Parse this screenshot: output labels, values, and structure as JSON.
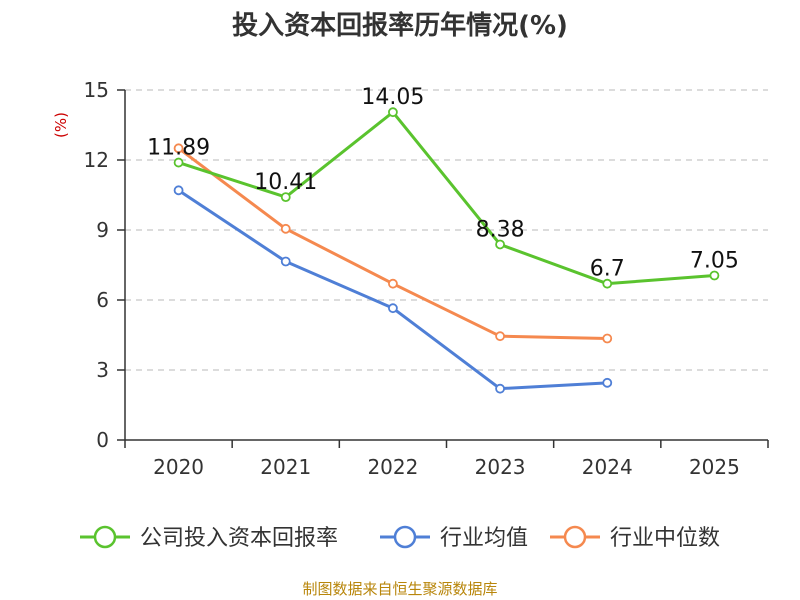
{
  "chart_data": {
    "type": "line",
    "title": "投入资本回报率历年情况(%)",
    "ylabel": "(%)",
    "xlabel": "",
    "ylim": [
      0,
      15
    ],
    "yticks": [
      0,
      3,
      6,
      9,
      12,
      15
    ],
    "categories": [
      "2020",
      "2021",
      "2022",
      "2023",
      "2024",
      "2025"
    ],
    "grid": true,
    "legend_position": "bottom",
    "series": [
      {
        "name": "公司投入资本回报率",
        "color": "#5ac32e",
        "values": [
          11.89,
          10.41,
          14.05,
          8.38,
          6.7,
          7.05
        ],
        "labels": [
          "11.89",
          "10.41",
          "14.05",
          "8.38",
          "6.7",
          "7.05"
        ]
      },
      {
        "name": "行业均值",
        "color": "#4f7fd6",
        "values": [
          10.7,
          7.65,
          5.65,
          2.2,
          2.45,
          null
        ]
      },
      {
        "name": "行业中位数",
        "color": "#f5894f",
        "values": [
          12.5,
          9.05,
          6.7,
          4.45,
          4.35,
          null
        ]
      }
    ],
    "source": "制图数据来自恒生聚源数据库"
  }
}
